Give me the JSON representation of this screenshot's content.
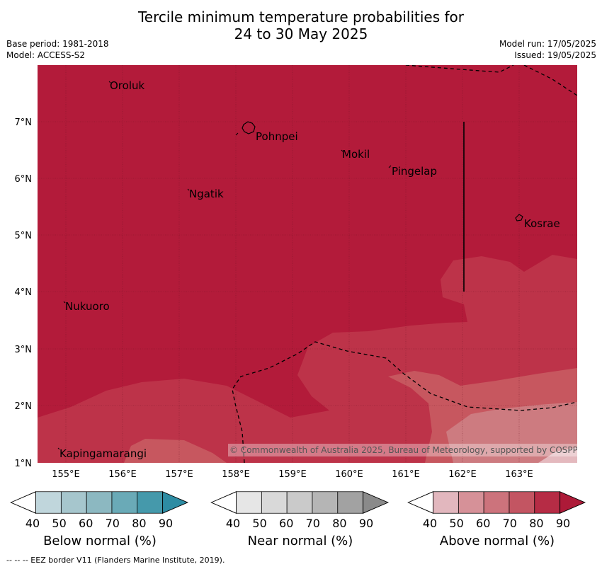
{
  "title_line1": "Tercile minimum temperature probabilities for",
  "title_line2": "24 to 30 May 2025",
  "base_period": "Base period: 1981-2018",
  "model": "Model: ACCESS-S2",
  "model_run": "Model run: 17/05/2025",
  "issued": "Issued: 19/05/2025",
  "copyright": "© Commonwealth of Australia 2025, Bureau of Meteorology, supported by COSPPac",
  "footnote": "--  --  -- EEZ border V11 (Flanders Marine Institute, 2019).",
  "lon_labels": [
    "155°E",
    "156°E",
    "157°E",
    "158°E",
    "159°E",
    "160°E",
    "161°E",
    "162°E",
    "163°E"
  ],
  "lat_labels": [
    "7°N",
    "6°N",
    "5°N",
    "4°N",
    "3°N",
    "2°N",
    "1°N"
  ],
  "places": [
    {
      "name": "Oroluk"
    },
    {
      "name": "Pohnpei"
    },
    {
      "name": "Mokil"
    },
    {
      "name": "Pingelap"
    },
    {
      "name": "Ngatik"
    },
    {
      "name": "Kosrae"
    },
    {
      "name": "Nukuoro"
    },
    {
      "name": "Kapingamarangi"
    }
  ],
  "colors": {
    "above_90": "#b31b3a",
    "above_80": "#bd3349",
    "above_70": "#c7575f",
    "above_60": "#cd7b80",
    "above_50": "#d99aa1",
    "above_40": "#e4b9be"
  },
  "legends": [
    {
      "caption": "Below normal (%)",
      "ticks": [
        "40",
        "50",
        "60",
        "70",
        "80",
        "90"
      ],
      "colors": [
        "#c0d6dc",
        "#a6c6cd",
        "#8cb8c1",
        "#6aaab7",
        "#4599ab",
        "#2d8ca3"
      ]
    },
    {
      "caption": "Near normal (%)",
      "ticks": [
        "40",
        "50",
        "60",
        "70",
        "80",
        "90"
      ],
      "colors": [
        "#e6e6e6",
        "#d9d9d9",
        "#cacaca",
        "#b5b5b5",
        "#a2a2a2",
        "#8a8a8a"
      ]
    },
    {
      "caption": "Above normal (%)",
      "ticks": [
        "40",
        "50",
        "60",
        "70",
        "80",
        "90"
      ],
      "colors": [
        "#e2b7be",
        "#d69198",
        "#cc737c",
        "#c35562",
        "#b62c45",
        "#ad1a38"
      ]
    }
  ]
}
